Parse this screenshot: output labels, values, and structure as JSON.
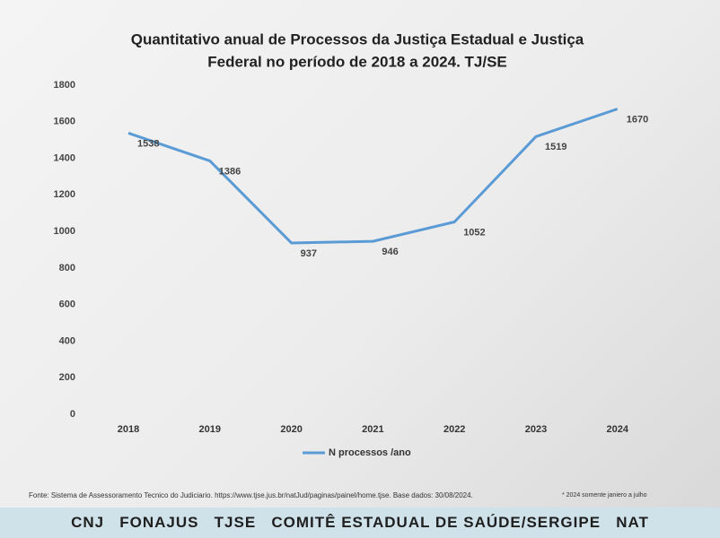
{
  "chart_data": {
    "type": "line",
    "title": [
      "Quantitativo anual de Processos da Justiça Estadual e Justiça",
      "Federal no período de 2018 a 2024. TJ/SE"
    ],
    "categories": [
      "2018",
      "2019",
      "2020",
      "2021",
      "2022",
      "2023",
      "2024"
    ],
    "series": [
      {
        "name": "N processos /ano",
        "color": "#5b9bd5",
        "values": [
          1538,
          1386,
          937,
          946,
          1052,
          1519,
          1670
        ]
      }
    ],
    "ylim": [
      0,
      1800
    ],
    "yticks": [
      0,
      200,
      400,
      600,
      800,
      1000,
      1200,
      1400,
      1600,
      1800
    ],
    "legend": "bottom",
    "data_labels": true
  },
  "footer": {
    "source": "Fonte: Sistema de Assessoramento Tecnico do Judiciario. https://www.tjse.jus.br/natJud/paginas/painel/home.tjse. Base dados: 30/08/2024.",
    "note": "* 2024 somente janiero a julho",
    "banner": "CNJ   FONAJUS   TJSE   COMITÊ ESTADUAL DE SAÚDE/SERGIPE   NAT"
  }
}
